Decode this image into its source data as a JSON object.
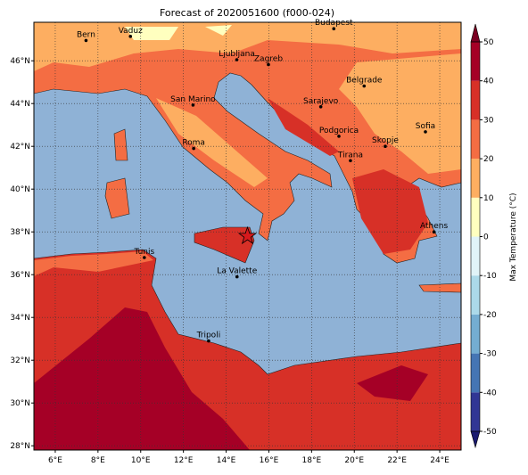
{
  "title": "Forecast of 2020051600 (f000-024)",
  "map": {
    "lonlim": [
      5,
      25
    ],
    "latlim": [
      27.8,
      47.8
    ],
    "sea_color": "#8fb2d6",
    "grid": true,
    "xticks": [
      {
        "value": 6,
        "label": "6°E"
      },
      {
        "value": 8,
        "label": "8°E"
      },
      {
        "value": 10,
        "label": "10°E"
      },
      {
        "value": 12,
        "label": "12°E"
      },
      {
        "value": 14,
        "label": "14°E"
      },
      {
        "value": 16,
        "label": "16°E"
      },
      {
        "value": 18,
        "label": "18°E"
      },
      {
        "value": 20,
        "label": "20°E"
      },
      {
        "value": 22,
        "label": "22°E"
      },
      {
        "value": 24,
        "label": "24°E"
      }
    ],
    "yticks": [
      {
        "value": 28,
        "label": "28°N"
      },
      {
        "value": 30,
        "label": "30°N"
      },
      {
        "value": 32,
        "label": "32°N"
      },
      {
        "value": 34,
        "label": "34°N"
      },
      {
        "value": 36,
        "label": "36°N"
      },
      {
        "value": 38,
        "label": "38°N"
      },
      {
        "value": 40,
        "label": "40°N"
      },
      {
        "value": 42,
        "label": "42°N"
      },
      {
        "value": 44,
        "label": "44°N"
      },
      {
        "value": 46,
        "label": "46°N"
      }
    ]
  },
  "cities": [
    {
      "name": "Bern",
      "lon": 7.44,
      "lat": 46.95
    },
    {
      "name": "Vaduz",
      "lon": 9.52,
      "lat": 47.14
    },
    {
      "name": "Budapest",
      "lon": 19.04,
      "lat": 47.5
    },
    {
      "name": "Ljubljana",
      "lon": 14.5,
      "lat": 46.05
    },
    {
      "name": "Zagreb",
      "lon": 15.98,
      "lat": 45.82
    },
    {
      "name": "Belgrade",
      "lon": 20.46,
      "lat": 44.82
    },
    {
      "name": "San Marino",
      "lon": 12.45,
      "lat": 43.93
    },
    {
      "name": "Sarajevo",
      "lon": 18.43,
      "lat": 43.85
    },
    {
      "name": "Sofia",
      "lon": 23.33,
      "lat": 42.68
    },
    {
      "name": "Podgorica",
      "lon": 19.28,
      "lat": 42.47
    },
    {
      "name": "Skopje",
      "lon": 21.45,
      "lat": 42.0
    },
    {
      "name": "Roma",
      "lon": 12.48,
      "lat": 41.9
    },
    {
      "name": "Tirana",
      "lon": 19.82,
      "lat": 41.33
    },
    {
      "name": "Athens",
      "lon": 23.73,
      "lat": 38.0
    },
    {
      "name": "Tunis",
      "lon": 10.17,
      "lat": 36.8
    },
    {
      "name": "La Valette",
      "lon": 14.51,
      "lat": 35.9
    },
    {
      "name": "Tripoli",
      "lon": 13.18,
      "lat": 32.9
    }
  ],
  "marker": {
    "lon": 15.0,
    "lat": 37.8,
    "color": "#d7191c"
  },
  "colorbar": {
    "label": "Max Temperature (°C)",
    "ticks": [
      -50,
      -40,
      -30,
      -20,
      -10,
      0,
      10,
      20,
      30,
      40,
      50
    ],
    "colors": [
      "#313695",
      "#4575b4",
      "#74add1",
      "#abd9e9",
      "#e0f3f8",
      "#ffffbf",
      "#fdae61",
      "#f46d43",
      "#d73027",
      "#a50026"
    ],
    "under": "#1a1a70",
    "over": "#7a0022"
  }
}
